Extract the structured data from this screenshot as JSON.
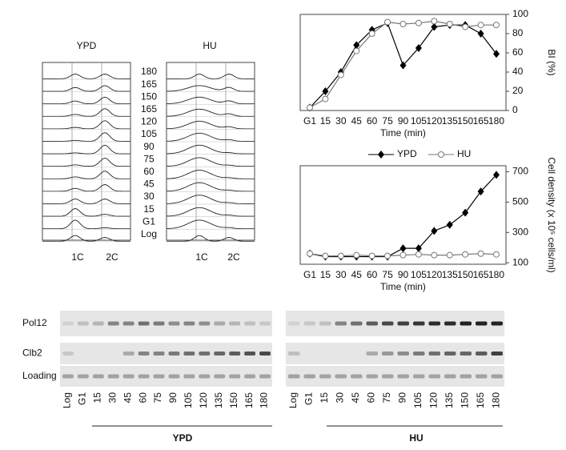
{
  "chart_data": [
    {
      "type": "line",
      "xlabel": "Time (min)",
      "ylabel": "BI (%)",
      "categories": [
        "G1",
        "15",
        "30",
        "45",
        "60",
        "75",
        "90",
        "105",
        "120",
        "135",
        "150",
        "165",
        "180"
      ],
      "ylim": [
        0,
        100
      ],
      "yticks": [
        0,
        20,
        40,
        60,
        80,
        100
      ],
      "legend": "bottom",
      "series": [
        {
          "name": "YPD",
          "color": "#000000",
          "marker": "diamond",
          "values": [
            3,
            20,
            40,
            68,
            84,
            91,
            47,
            65,
            87,
            89,
            89,
            80,
            59
          ]
        },
        {
          "name": "HU",
          "color": "#777777",
          "marker": "circle",
          "values": [
            3,
            12,
            37,
            62,
            80,
            92,
            90,
            91,
            93,
            90,
            87,
            89,
            89
          ]
        }
      ]
    },
    {
      "type": "line",
      "xlabel": "Time (min)",
      "ylabel": "Cell density (x 10⁵ cells/ml)",
      "categories": [
        "G1",
        "15",
        "30",
        "45",
        "60",
        "75",
        "90",
        "105",
        "120",
        "135",
        "150",
        "165",
        "180"
      ],
      "ylim": [
        90,
        740
      ],
      "yticks": [
        100,
        300,
        500,
        700
      ],
      "series": [
        {
          "color": "#000000",
          "marker": "diamond",
          "values": [
            160,
            140,
            140,
            140,
            140,
            140,
            195,
            195,
            310,
            350,
            430,
            570,
            680
          ]
        },
        {
          "color": "#777777",
          "marker": "circle",
          "values": [
            160,
            145,
            145,
            150,
            145,
            145,
            150,
            155,
            150,
            150,
            155,
            160,
            155
          ]
        }
      ]
    }
  ],
  "flow": {
    "panels": [
      "YPD",
      "HU"
    ],
    "times": [
      "180",
      "165",
      "150",
      "165",
      "120",
      "105",
      "90",
      "75",
      "60",
      "45",
      "30",
      "15",
      "G1",
      "Log"
    ],
    "markers": [
      "1C",
      "2C"
    ]
  },
  "blot": {
    "rows": [
      "Pol12",
      "Clb2",
      "Loading"
    ],
    "lanes": [
      "Log",
      "G1",
      "15",
      "30",
      "45",
      "60",
      "75",
      "90",
      "105",
      "120",
      "135",
      "150",
      "165",
      "180"
    ],
    "groups": [
      "YPD",
      "HU"
    ]
  }
}
